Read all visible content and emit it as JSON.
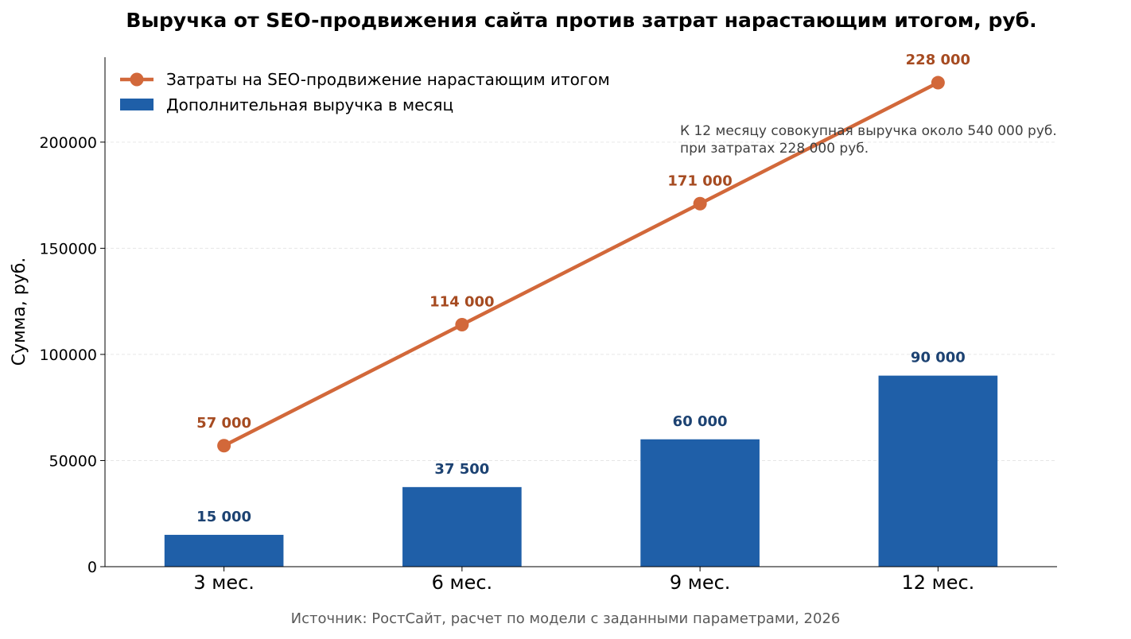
{
  "chart_data": {
    "type": "bar",
    "title": "Выручка от SEO-продвижения сайта против затрат нарастающим итогом, руб.",
    "xlabel": "",
    "ylabel": "Сумма, руб.",
    "categories": [
      "3 мес.",
      "6 мес.",
      "9 мес.",
      "12 мес."
    ],
    "ylim": [
      0,
      240000
    ],
    "yticks": [
      0,
      50000,
      100000,
      150000,
      200000
    ],
    "ytick_labels": [
      "0",
      "50000",
      "100000",
      "150000",
      "200000"
    ],
    "grid": "horizontal, dashed",
    "legend_position": "top-left",
    "series": [
      {
        "name": "Затраты на SEO-продвижение нарастающим итогом",
        "type": "line",
        "color": "#d2683a",
        "values": [
          57000,
          114000,
          171000,
          228000
        ],
        "labels": [
          "57 000",
          "114 000",
          "171 000",
          "228 000"
        ]
      },
      {
        "name": "Дополнительная выручка в месяц",
        "type": "bar",
        "color": "#1f5fa8",
        "values": [
          15000,
          37500,
          60000,
          90000
        ],
        "labels": [
          "15 000",
          "37 500",
          "60 000",
          "90 000"
        ]
      }
    ],
    "annotation": [
      "К 12 месяцу совокупная выручка около 540 000 руб.",
      "при затратах 228 000 руб."
    ],
    "source": "Источник: РостСайт, расчет по модели с заданными параметрами, 2026"
  },
  "colors": {
    "bar": "#1f5fa8",
    "line": "#d2683a",
    "bar_label": "#1c4272",
    "line_label": "#a64b21",
    "grid": "#e6e6e6",
    "axis": "#000000"
  }
}
